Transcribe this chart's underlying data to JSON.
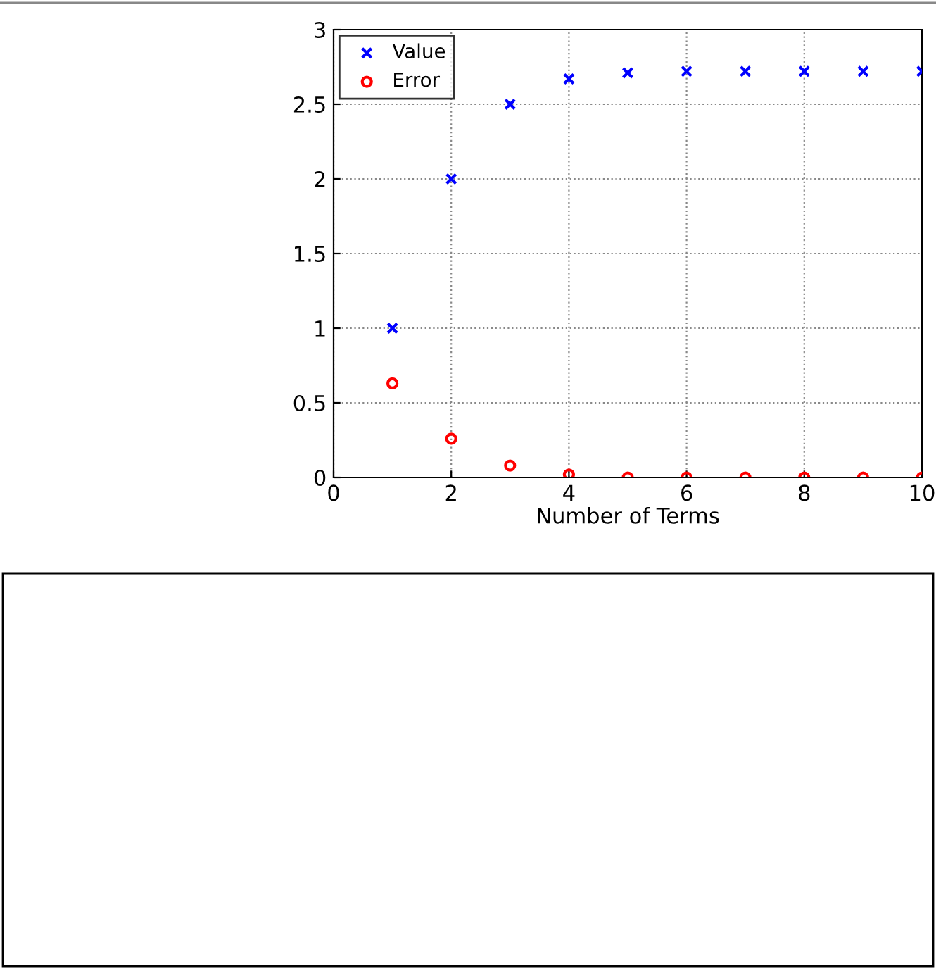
{
  "chart_data": {
    "type": "scatter",
    "xlabel": "Number of Terms",
    "x": [
      1,
      2,
      3,
      4,
      5,
      6,
      7,
      8,
      9,
      10
    ],
    "series": [
      {
        "name": "Value",
        "color": "#0000ff",
        "marker": "cross",
        "values": [
          1,
          2,
          2.5,
          2.67,
          2.71,
          2.72,
          2.72,
          2.72,
          2.72,
          2.72
        ]
      },
      {
        "name": "Error",
        "color": "#ff0000",
        "marker": "circle",
        "values": [
          0.63,
          0.26,
          0.08,
          0.02,
          0,
          0,
          0,
          0,
          0,
          0
        ]
      }
    ],
    "xlim": [
      0,
      10
    ],
    "xticks": [
      0,
      2,
      4,
      6,
      8,
      10
    ],
    "ylim": [
      0,
      3
    ],
    "yticks": [
      0,
      0.5,
      1,
      1.5,
      2,
      2.5,
      3
    ],
    "grid": true,
    "legend": "top left"
  }
}
